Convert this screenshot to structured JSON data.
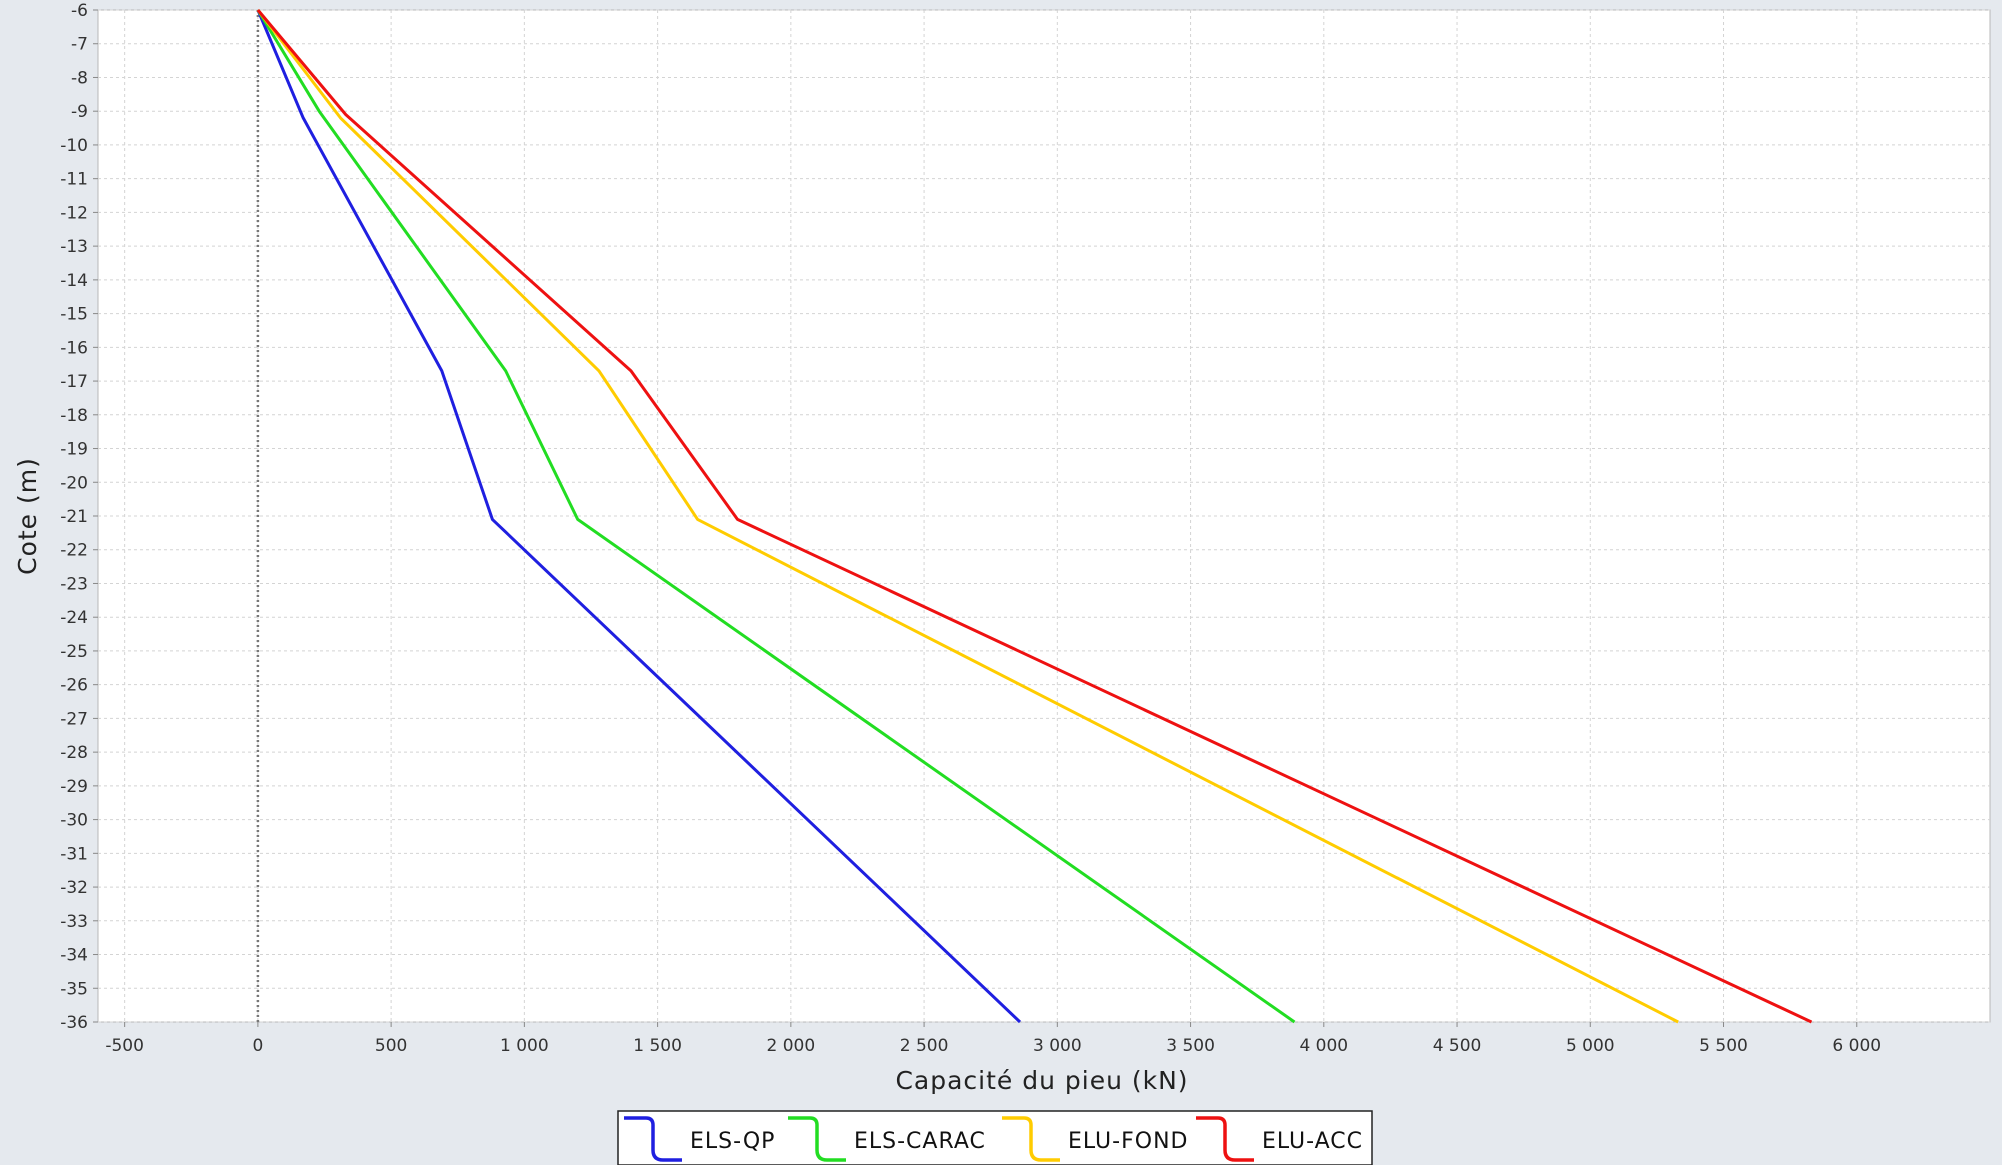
{
  "chart_data": {
    "type": "line",
    "title": "",
    "xlabel": "Capacité du pieu (kN)",
    "ylabel": "Cote (m)",
    "xlim": [
      -600,
      6500
    ],
    "ylim": [
      -36,
      -6
    ],
    "x_ticks": [
      {
        "value": -500,
        "label": "-500"
      },
      {
        "value": 0,
        "label": "0"
      },
      {
        "value": 500,
        "label": "500"
      },
      {
        "value": 1000,
        "label": "1 000"
      },
      {
        "value": 1500,
        "label": "1 500"
      },
      {
        "value": 2000,
        "label": "2 000"
      },
      {
        "value": 2500,
        "label": "2 500"
      },
      {
        "value": 3000,
        "label": "3 000"
      },
      {
        "value": 3500,
        "label": "3 500"
      },
      {
        "value": 4000,
        "label": "4 000"
      },
      {
        "value": 4500,
        "label": "4 500"
      },
      {
        "value": 5000,
        "label": "5 000"
      },
      {
        "value": 5500,
        "label": "5 500"
      },
      {
        "value": 6000,
        "label": "6 000"
      }
    ],
    "y_ticks": [
      -6,
      -7,
      -8,
      -9,
      -10,
      -11,
      -12,
      -13,
      -14,
      -15,
      -16,
      -17,
      -18,
      -19,
      -20,
      -21,
      -22,
      -23,
      -24,
      -25,
      -26,
      -27,
      -28,
      -29,
      -30,
      -31,
      -32,
      -33,
      -34,
      -35,
      -36
    ],
    "grid": true,
    "zero_line": 0,
    "legend_position": "bottom",
    "series": [
      {
        "name": "ELS-QP",
        "color": "#1f1fe0",
        "points": [
          [
            0,
            -6
          ],
          [
            170,
            -9.2
          ],
          [
            690,
            -16.7
          ],
          [
            880,
            -21.1
          ],
          [
            2860,
            -36
          ]
        ]
      },
      {
        "name": "ELS-CARAC",
        "color": "#22dd22",
        "points": [
          [
            0,
            -6
          ],
          [
            230,
            -9
          ],
          [
            930,
            -16.7
          ],
          [
            1200,
            -21.1
          ],
          [
            3890,
            -36
          ]
        ]
      },
      {
        "name": "ELU-FOND",
        "color": "#ffcc00",
        "points": [
          [
            0,
            -6
          ],
          [
            310,
            -9.2
          ],
          [
            1280,
            -16.7
          ],
          [
            1650,
            -21.1
          ],
          [
            5330,
            -36
          ]
        ]
      },
      {
        "name": "ELU-ACC",
        "color": "#ee1111",
        "points": [
          [
            0,
            -6
          ],
          [
            330,
            -9.1
          ],
          [
            1400,
            -16.7
          ],
          [
            1800,
            -21.1
          ],
          [
            5830,
            -36
          ]
        ]
      }
    ]
  }
}
